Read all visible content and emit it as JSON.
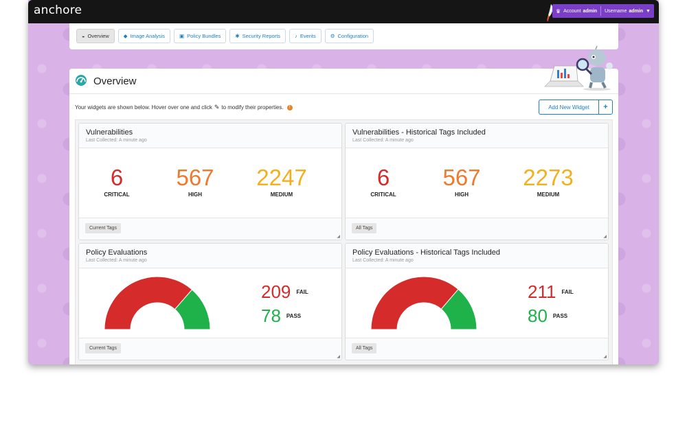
{
  "app": {
    "brand": "anchore"
  },
  "account_menu": {
    "account_label": "Account",
    "account_value": "admin",
    "username_label": "Username",
    "username_value": "admin"
  },
  "tabs": [
    {
      "label": "Overview",
      "icon": "dashboard-icon"
    },
    {
      "label": "Image Analysis",
      "icon": "tags-icon"
    },
    {
      "label": "Policy Bundles",
      "icon": "suitcase-icon"
    },
    {
      "label": "Security Reports",
      "icon": "bug-icon"
    },
    {
      "label": "Events",
      "icon": "bell-icon"
    },
    {
      "label": "Configuration",
      "icon": "gear-icon"
    }
  ],
  "overview": {
    "title": "Overview",
    "intro_before": "Your widgets are shown below. Hover over one and click",
    "intro_after": "to modify their properties.",
    "add_widget_label": "Add New Widget"
  },
  "colors": {
    "critical": "#d62b2b",
    "high": "#ef7a2d",
    "medium": "#f2b01e",
    "fail": "#d62b2b",
    "pass": "#1fb14a",
    "accent": "#1d7fc3",
    "account": "#7a3fc6"
  },
  "widgets": {
    "vuln": {
      "title": "Vulnerabilities",
      "subtitle": "Last Collected: A minute ago",
      "critical": "6",
      "high": "567",
      "medium": "2247",
      "critical_label": "CRITICAL",
      "high_label": "HIGH",
      "medium_label": "MEDIUM",
      "tag": "Current Tags"
    },
    "vuln_hist": {
      "title": "Vulnerabilities - Historical Tags Included",
      "subtitle": "Last Collected: A minute ago",
      "critical": "6",
      "high": "567",
      "medium": "2273",
      "critical_label": "CRITICAL",
      "high_label": "HIGH",
      "medium_label": "MEDIUM",
      "tag": "All Tags"
    },
    "policy": {
      "title": "Policy Evaluations",
      "subtitle": "Last Collected: A minute ago",
      "fail": 209,
      "pass": 78,
      "fail_label": "FAIL",
      "pass_label": "PASS",
      "tag": "Current Tags"
    },
    "policy_hist": {
      "title": "Policy Evaluations - Historical Tags Included",
      "subtitle": "Last Collected: A minute ago",
      "fail": 211,
      "pass": 80,
      "fail_label": "FAIL",
      "pass_label": "PASS",
      "tag": "All Tags"
    }
  }
}
